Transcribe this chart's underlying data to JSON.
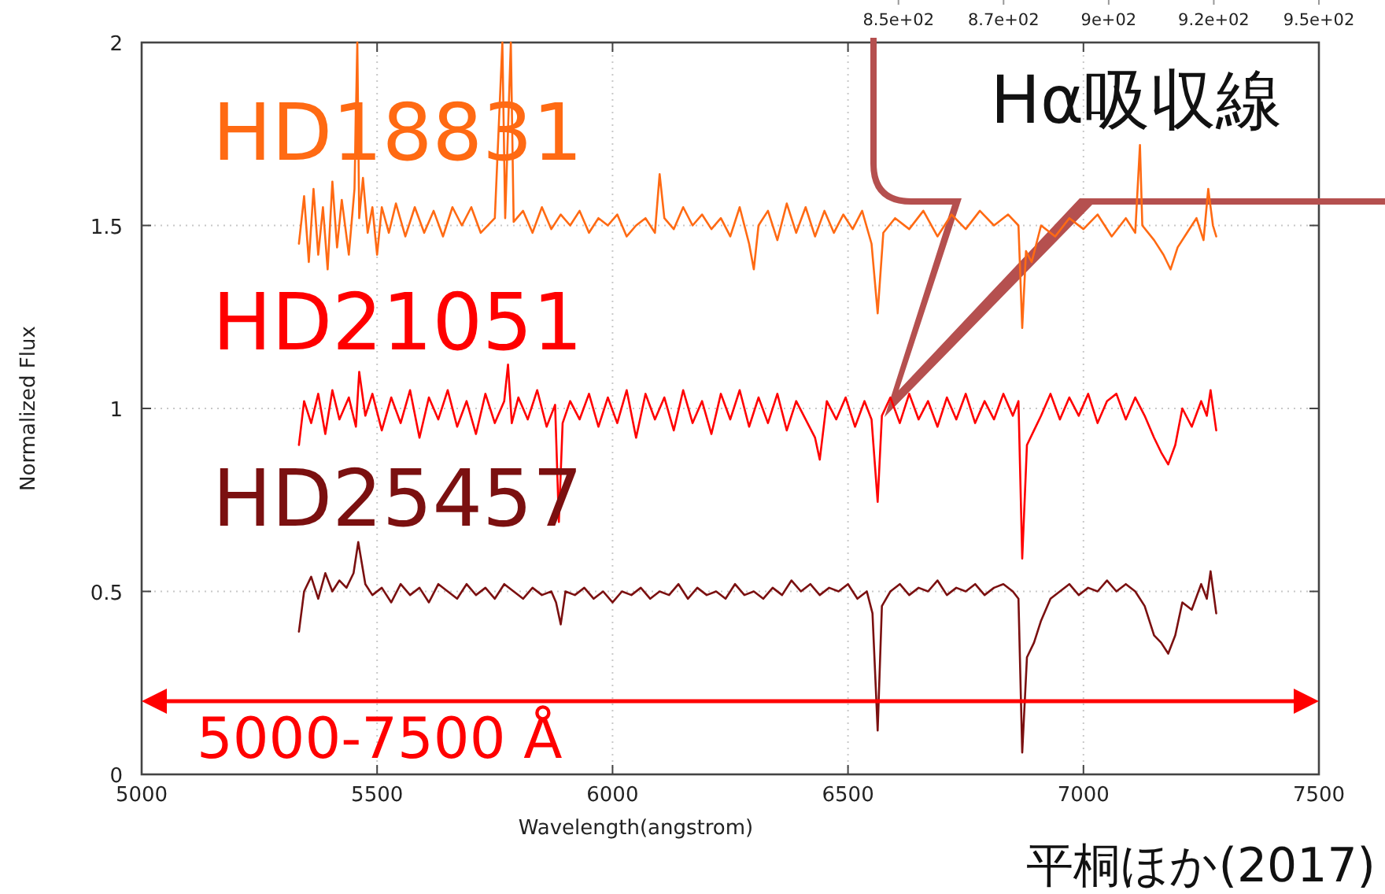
{
  "chart_data": {
    "type": "line",
    "xlabel": "Wavelength(angstrom)",
    "ylabel": "Normalized Flux",
    "xlim": [
      5000,
      7500
    ],
    "ylim": [
      0,
      2
    ],
    "xticks": [
      5000,
      5500,
      6000,
      6500,
      7000,
      7500
    ],
    "yticks": [
      0,
      0.5,
      1,
      1.5,
      2
    ],
    "x2lim": [
      670,
      950
    ],
    "x2ticks": [
      {
        "value": 850,
        "label": "8.5e+02"
      },
      {
        "value": 875,
        "label": "8.7e+02"
      },
      {
        "value": 900,
        "label": "9e+02"
      },
      {
        "value": 925,
        "label": "9.2e+02"
      },
      {
        "value": 950,
        "label": "9.5e+02"
      }
    ],
    "grid": true,
    "annotations": [
      "Hα吸収線",
      "5000-7500 Å",
      "平桐ほか(2017)"
    ],
    "series": [
      {
        "name": "HD18831",
        "color": "#ff6a13",
        "x": [
          5334,
          5345,
          5355,
          5365,
          5375,
          5385,
          5395,
          5405,
          5415,
          5425,
          5440,
          5452,
          5458,
          5462,
          5470,
          5480,
          5490,
          5500,
          5510,
          5525,
          5540,
          5560,
          5580,
          5600,
          5620,
          5640,
          5660,
          5680,
          5700,
          5720,
          5750,
          5766,
          5772,
          5784,
          5790,
          5810,
          5830,
          5850,
          5870,
          5890,
          5910,
          5930,
          5950,
          5970,
          5990,
          6010,
          6030,
          6050,
          6070,
          6090,
          6100,
          6110,
          6130,
          6150,
          6170,
          6190,
          6210,
          6230,
          6250,
          6270,
          6290,
          6300,
          6310,
          6330,
          6350,
          6370,
          6390,
          6410,
          6430,
          6450,
          6470,
          6490,
          6510,
          6530,
          6550,
          6563,
          6575,
          6600,
          6630,
          6660,
          6690,
          6720,
          6750,
          6780,
          6810,
          6840,
          6862,
          6870,
          6878,
          6890,
          6910,
          6940,
          6970,
          7000,
          7030,
          7060,
          7090,
          7110,
          7120,
          7125,
          7150,
          7170,
          7185,
          7200,
          7220,
          7240,
          7255,
          7265,
          7275,
          7282
        ],
        "values": [
          1.45,
          1.58,
          1.4,
          1.6,
          1.42,
          1.55,
          1.38,
          1.62,
          1.44,
          1.57,
          1.42,
          1.6,
          2.0,
          1.52,
          1.63,
          1.48,
          1.55,
          1.42,
          1.55,
          1.48,
          1.56,
          1.47,
          1.55,
          1.48,
          1.54,
          1.47,
          1.55,
          1.5,
          1.55,
          1.48,
          1.52,
          2.0,
          1.52,
          2.0,
          1.51,
          1.54,
          1.48,
          1.55,
          1.49,
          1.53,
          1.5,
          1.54,
          1.48,
          1.52,
          1.5,
          1.53,
          1.47,
          1.5,
          1.52,
          1.48,
          1.64,
          1.52,
          1.49,
          1.55,
          1.5,
          1.53,
          1.49,
          1.52,
          1.47,
          1.55,
          1.45,
          1.38,
          1.5,
          1.54,
          1.46,
          1.56,
          1.48,
          1.55,
          1.47,
          1.54,
          1.48,
          1.53,
          1.49,
          1.54,
          1.45,
          1.26,
          1.48,
          1.52,
          1.49,
          1.54,
          1.47,
          1.53,
          1.49,
          1.54,
          1.5,
          1.53,
          1.5,
          1.22,
          1.43,
          1.4,
          1.5,
          1.47,
          1.52,
          1.49,
          1.53,
          1.47,
          1.52,
          1.48,
          1.72,
          1.5,
          1.46,
          1.42,
          1.38,
          1.44,
          1.48,
          1.52,
          1.46,
          1.6,
          1.5,
          1.47
        ]
      },
      {
        "name": "HD21051",
        "color": "#ff0000",
        "x": [
          5334,
          5345,
          5360,
          5375,
          5390,
          5405,
          5420,
          5440,
          5455,
          5462,
          5475,
          5490,
          5510,
          5530,
          5550,
          5570,
          5590,
          5610,
          5630,
          5650,
          5670,
          5690,
          5710,
          5730,
          5750,
          5770,
          5778,
          5786,
          5800,
          5820,
          5840,
          5860,
          5878,
          5886,
          5894,
          5910,
          5930,
          5950,
          5970,
          5990,
          6010,
          6030,
          6050,
          6070,
          6090,
          6110,
          6130,
          6150,
          6170,
          6190,
          6210,
          6230,
          6250,
          6270,
          6290,
          6310,
          6330,
          6350,
          6370,
          6390,
          6410,
          6430,
          6440,
          6455,
          6475,
          6495,
          6515,
          6535,
          6550,
          6563,
          6572,
          6590,
          6610,
          6630,
          6650,
          6670,
          6690,
          6710,
          6730,
          6750,
          6770,
          6790,
          6810,
          6830,
          6850,
          6862,
          6870,
          6880,
          6895,
          6910,
          6930,
          6950,
          6970,
          6990,
          7010,
          7030,
          7050,
          7070,
          7090,
          7110,
          7130,
          7150,
          7165,
          7180,
          7195,
          7210,
          7230,
          7250,
          7262,
          7270,
          7282
        ],
        "values": [
          0.9,
          1.02,
          0.96,
          1.04,
          0.93,
          1.05,
          0.97,
          1.03,
          0.95,
          1.1,
          0.98,
          1.04,
          0.94,
          1.03,
          0.96,
          1.05,
          0.92,
          1.03,
          0.97,
          1.05,
          0.95,
          1.02,
          0.93,
          1.04,
          0.96,
          1.02,
          1.12,
          0.96,
          1.03,
          0.97,
          1.05,
          0.95,
          1.01,
          0.69,
          0.96,
          1.02,
          0.97,
          1.04,
          0.95,
          1.03,
          0.96,
          1.05,
          0.92,
          1.04,
          0.97,
          1.03,
          0.94,
          1.05,
          0.96,
          1.02,
          0.93,
          1.04,
          0.97,
          1.05,
          0.95,
          1.03,
          0.96,
          1.04,
          0.94,
          1.02,
          0.97,
          0.92,
          0.86,
          1.02,
          0.97,
          1.03,
          0.95,
          1.02,
          0.97,
          0.745,
          0.98,
          1.03,
          0.96,
          1.04,
          0.97,
          1.02,
          0.95,
          1.03,
          0.97,
          1.04,
          0.96,
          1.02,
          0.97,
          1.04,
          0.98,
          1.02,
          0.59,
          0.9,
          0.94,
          0.98,
          1.04,
          0.97,
          1.03,
          0.98,
          1.04,
          0.96,
          1.02,
          1.04,
          0.97,
          1.03,
          0.98,
          0.92,
          0.88,
          0.847,
          0.9,
          1.0,
          0.95,
          1.02,
          0.98,
          1.05,
          0.94
        ]
      },
      {
        "name": "HD25457",
        "color": "#7b1010",
        "x": [
          5334,
          5345,
          5360,
          5375,
          5390,
          5405,
          5420,
          5435,
          5450,
          5460,
          5475,
          5490,
          5510,
          5530,
          5550,
          5570,
          5590,
          5610,
          5630,
          5650,
          5670,
          5690,
          5710,
          5730,
          5750,
          5770,
          5790,
          5810,
          5830,
          5850,
          5870,
          5880,
          5890,
          5900,
          5920,
          5940,
          5960,
          5980,
          6000,
          6020,
          6040,
          6060,
          6080,
          6100,
          6120,
          6140,
          6160,
          6180,
          6200,
          6220,
          6240,
          6260,
          6280,
          6300,
          6320,
          6340,
          6360,
          6380,
          6400,
          6420,
          6440,
          6460,
          6480,
          6500,
          6520,
          6540,
          6552,
          6563,
          6572,
          6590,
          6610,
          6630,
          6650,
          6670,
          6690,
          6710,
          6730,
          6750,
          6770,
          6790,
          6810,
          6830,
          6850,
          6862,
          6870,
          6880,
          6895,
          6910,
          6930,
          6950,
          6970,
          6990,
          7010,
          7030,
          7050,
          7070,
          7090,
          7110,
          7130,
          7150,
          7165,
          7180,
          7195,
          7210,
          7230,
          7250,
          7262,
          7270,
          7282
        ],
        "values": [
          0.39,
          0.5,
          0.54,
          0.48,
          0.55,
          0.5,
          0.53,
          0.51,
          0.55,
          0.635,
          0.52,
          0.49,
          0.51,
          0.47,
          0.52,
          0.49,
          0.51,
          0.47,
          0.52,
          0.5,
          0.48,
          0.52,
          0.49,
          0.51,
          0.48,
          0.52,
          0.5,
          0.48,
          0.51,
          0.49,
          0.5,
          0.47,
          0.41,
          0.5,
          0.49,
          0.51,
          0.48,
          0.5,
          0.47,
          0.5,
          0.49,
          0.51,
          0.48,
          0.5,
          0.49,
          0.52,
          0.48,
          0.51,
          0.49,
          0.5,
          0.48,
          0.52,
          0.49,
          0.5,
          0.48,
          0.51,
          0.49,
          0.53,
          0.5,
          0.52,
          0.49,
          0.51,
          0.5,
          0.52,
          0.48,
          0.5,
          0.44,
          0.12,
          0.46,
          0.5,
          0.52,
          0.49,
          0.51,
          0.5,
          0.53,
          0.49,
          0.51,
          0.5,
          0.52,
          0.49,
          0.51,
          0.52,
          0.5,
          0.48,
          0.06,
          0.32,
          0.36,
          0.42,
          0.48,
          0.5,
          0.52,
          0.49,
          0.51,
          0.5,
          0.53,
          0.5,
          0.52,
          0.5,
          0.46,
          0.38,
          0.36,
          0.33,
          0.38,
          0.47,
          0.45,
          0.52,
          0.48,
          0.555,
          0.44
        ]
      }
    ]
  }
}
